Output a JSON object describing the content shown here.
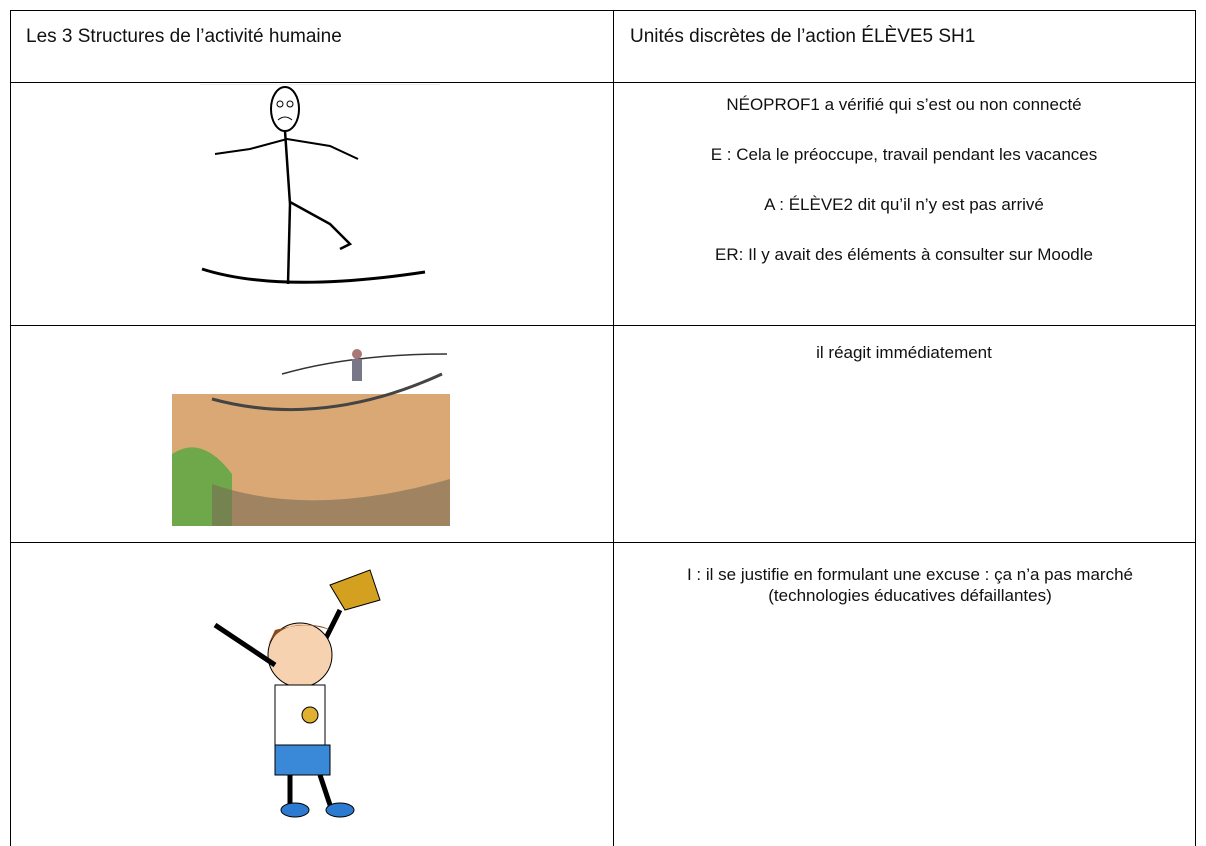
{
  "table": {
    "header": [
      "Les 3 Structures de l’activité humaine",
      "Unités discrètes de l’action ÉLÈVE5 SH1"
    ],
    "rows": [
      {
        "lines": [
          "NÉOPROF1 a vérifié qui s’est ou non connecté",
          "E : Cela le préoccupe, travail pendant les vacances",
          "A : ÉLÈVE2 dit qu’il n’y est pas arrivé",
          "ER: Il y avait des éléments à consulter sur Moodle"
        ]
      },
      {
        "lines": [
          "il réagit immédiatement"
        ]
      },
      {
        "lines": [
          "I : il se justifie en formulant une excuse :  ça n’a pas marché (technologies éducatives défaillantes)"
        ]
      }
    ]
  }
}
